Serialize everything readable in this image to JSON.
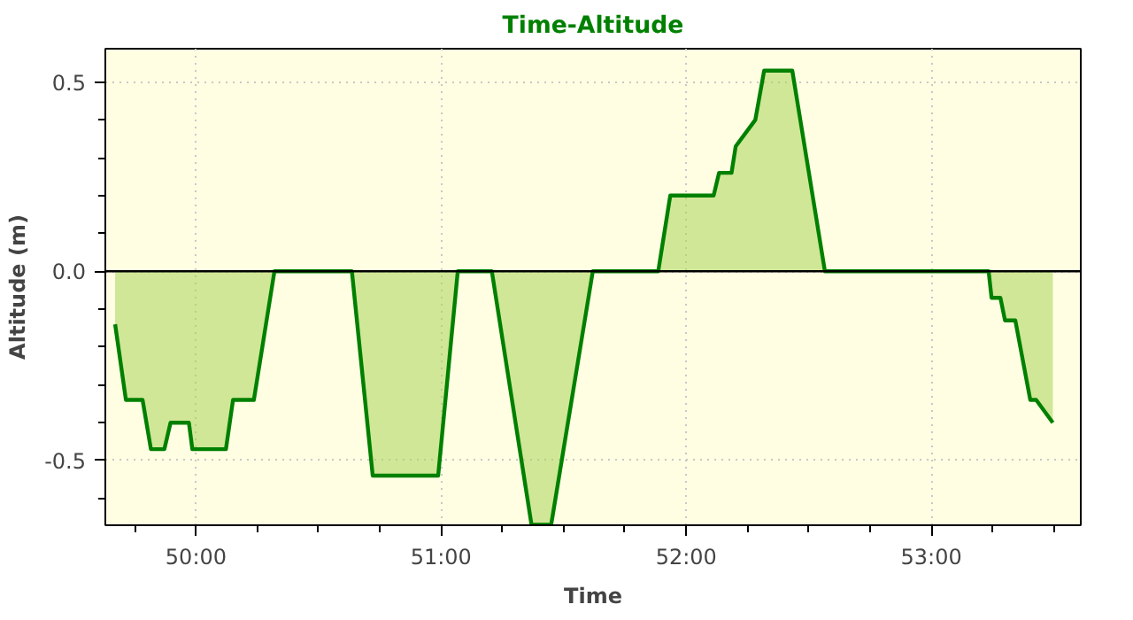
{
  "chart_data": {
    "type": "area",
    "title": "Time-Altitude",
    "xlabel": "Time",
    "ylabel": "Altitude (m)",
    "x": [
      49.67,
      49.714,
      49.782,
      49.816,
      49.871,
      49.896,
      49.971,
      49.985,
      50.122,
      50.151,
      50.236,
      50.32,
      50.636,
      50.721,
      50.988,
      51.068,
      51.207,
      51.369,
      51.449,
      51.619,
      51.886,
      51.935,
      52.112,
      52.134,
      52.185,
      52.202,
      52.282,
      52.318,
      52.433,
      52.566,
      53.234,
      53.246,
      53.282,
      53.301,
      53.343,
      53.404,
      53.428,
      53.496
    ],
    "series": [
      {
        "color": "#008000",
        "values": [
          -0.14,
          -0.34,
          -0.34,
          -0.47,
          -0.47,
          -0.4,
          -0.4,
          -0.47,
          -0.47,
          -0.34,
          -0.34,
          0,
          0,
          -0.54,
          -0.54,
          0,
          0,
          -0.67,
          -0.67,
          0,
          0,
          0.2,
          0.2,
          0.26,
          0.26,
          0.33,
          0.4,
          0.53,
          0.53,
          0,
          0,
          -0.07,
          -0.07,
          -0.13,
          -0.13,
          -0.34,
          -0.34,
          -0.4
        ]
      }
    ],
    "xlim": [
      49.63,
      53.61
    ],
    "ylim": [
      -0.671,
      0.588
    ],
    "xticks": [
      {
        "value": 49.75,
        "label": null
      },
      {
        "value": 50,
        "label": "50:00"
      },
      {
        "value": 50.25,
        "label": null
      },
      {
        "value": 50.5,
        "label": null
      },
      {
        "value": 50.75,
        "label": null
      },
      {
        "value": 51,
        "label": "51:00"
      },
      {
        "value": 51.25,
        "label": null
      },
      {
        "value": 51.5,
        "label": null
      },
      {
        "value": 51.75,
        "label": null
      },
      {
        "value": 52,
        "label": "52:00"
      },
      {
        "value": 52.25,
        "label": null
      },
      {
        "value": 52.5,
        "label": null
      },
      {
        "value": 52.75,
        "label": null
      },
      {
        "value": 53,
        "label": "53:00"
      },
      {
        "value": 53.25,
        "label": null
      },
      {
        "value": 53.5,
        "label": null
      }
    ],
    "yticks": [
      {
        "value": -0.6,
        "label": null
      },
      -0.5,
      {
        "value": -0.4,
        "label": null
      },
      {
        "value": -0.3,
        "label": null
      },
      {
        "value": -0.2,
        "label": null
      },
      {
        "value": -0.1,
        "label": null
      },
      {
        "value": 0,
        "label": "0.0"
      },
      {
        "value": 0.1,
        "label": null
      },
      {
        "value": 0.2,
        "label": null
      },
      {
        "value": 0.3,
        "label": null
      },
      {
        "value": 0.4,
        "label": null
      },
      {
        "value": 0.5,
        "label": "0.5"
      }
    ],
    "ref_lines": [
      {
        "axis": "y",
        "value": 0,
        "color": "#000000"
      }
    ],
    "grid": true
  }
}
